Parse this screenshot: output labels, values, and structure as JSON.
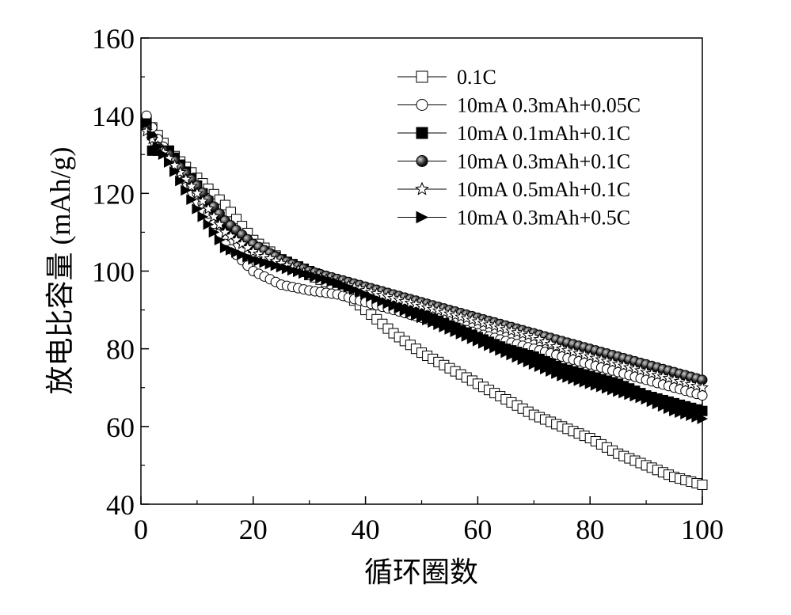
{
  "chart_data": {
    "type": "line",
    "xlabel": "循环圈数",
    "ylabel": "放电比容量 (mAh/g)",
    "xlim": [
      0,
      100
    ],
    "ylim": [
      40,
      160
    ],
    "xticks": [
      "0",
      "20",
      "40",
      "60",
      "80",
      "100"
    ],
    "yticks": [
      "40",
      "60",
      "80",
      "100",
      "120",
      "140",
      "160"
    ],
    "legend_position": "top-right",
    "grid": false,
    "series": [
      {
        "name": "0.1C",
        "marker": "open-square",
        "points": [
          [
            1,
            139
          ],
          [
            5,
            131
          ],
          [
            10,
            124
          ],
          [
            15,
            117
          ],
          [
            20,
            108
          ],
          [
            25,
            103
          ],
          [
            30,
            99
          ],
          [
            35,
            96
          ],
          [
            40,
            90
          ],
          [
            45,
            84
          ],
          [
            50,
            79
          ],
          [
            55,
            75
          ],
          [
            60,
            71
          ],
          [
            65,
            67
          ],
          [
            70,
            63
          ],
          [
            75,
            60
          ],
          [
            80,
            57
          ],
          [
            85,
            53
          ],
          [
            90,
            50
          ],
          [
            95,
            47
          ],
          [
            100,
            45
          ]
        ]
      },
      {
        "name": "10mA 0.3mAh+0.05C",
        "marker": "open-circle",
        "points": [
          [
            1,
            140
          ],
          [
            3,
            134
          ],
          [
            5,
            130
          ],
          [
            10,
            120
          ],
          [
            15,
            107
          ],
          [
            20,
            100
          ],
          [
            25,
            96.5
          ],
          [
            30,
            95
          ],
          [
            35,
            94
          ],
          [
            40,
            92
          ],
          [
            45,
            90
          ],
          [
            50,
            88
          ],
          [
            55,
            86
          ],
          [
            60,
            84
          ],
          [
            65,
            82
          ],
          [
            70,
            80
          ],
          [
            75,
            78
          ],
          [
            80,
            76
          ],
          [
            85,
            74
          ],
          [
            90,
            72
          ],
          [
            95,
            70
          ],
          [
            100,
            68
          ]
        ]
      },
      {
        "name": "10mA 0.1mAh+0.1C",
        "marker": "filled-square",
        "points": [
          [
            1,
            138
          ],
          [
            2,
            131
          ],
          [
            5,
            131
          ],
          [
            10,
            122
          ],
          [
            15,
            112
          ],
          [
            20,
            106
          ],
          [
            25,
            103
          ],
          [
            30,
            100
          ],
          [
            35,
            97
          ],
          [
            40,
            95
          ],
          [
            45,
            92
          ],
          [
            50,
            89
          ],
          [
            55,
            86
          ],
          [
            60,
            83
          ],
          [
            65,
            80
          ],
          [
            70,
            78
          ],
          [
            75,
            75
          ],
          [
            80,
            73
          ],
          [
            85,
            71
          ],
          [
            90,
            68
          ],
          [
            95,
            66
          ],
          [
            100,
            64
          ]
        ]
      },
      {
        "name": "10mA 0.3mAh+0.1C",
        "marker": "half-filled-circle",
        "points": [
          [
            1,
            137
          ],
          [
            3,
            132
          ],
          [
            5,
            130
          ],
          [
            10,
            122
          ],
          [
            15,
            113
          ],
          [
            20,
            107
          ],
          [
            25,
            103
          ],
          [
            30,
            100
          ],
          [
            35,
            98
          ],
          [
            40,
            96
          ],
          [
            45,
            94
          ],
          [
            50,
            92
          ],
          [
            55,
            90
          ],
          [
            60,
            88
          ],
          [
            65,
            86
          ],
          [
            70,
            84
          ],
          [
            75,
            82
          ],
          [
            80,
            80
          ],
          [
            85,
            78
          ],
          [
            90,
            76
          ],
          [
            95,
            74
          ],
          [
            100,
            72
          ]
        ]
      },
      {
        "name": "10mA 0.5mAh+0.1C",
        "marker": "open-star",
        "points": [
          [
            1,
            136
          ],
          [
            3,
            132
          ],
          [
            5,
            129
          ],
          [
            10,
            120
          ],
          [
            15,
            110
          ],
          [
            20,
            105
          ],
          [
            25,
            102
          ],
          [
            30,
            99
          ],
          [
            35,
            97
          ],
          [
            40,
            95
          ],
          [
            45,
            93
          ],
          [
            50,
            91
          ],
          [
            55,
            89
          ],
          [
            60,
            87
          ],
          [
            65,
            85
          ],
          [
            70,
            83
          ],
          [
            75,
            80
          ],
          [
            80,
            78
          ],
          [
            85,
            76
          ],
          [
            90,
            74
          ],
          [
            95,
            72
          ],
          [
            100,
            70
          ]
        ]
      },
      {
        "name": "10mA 0.3mAh+0.5C",
        "marker": "filled-right-triangle",
        "points": [
          [
            1,
            138
          ],
          [
            3,
            132
          ],
          [
            5,
            128
          ],
          [
            10,
            116
          ],
          [
            15,
            106
          ],
          [
            20,
            103
          ],
          [
            25,
            101
          ],
          [
            30,
            99
          ],
          [
            35,
            97
          ],
          [
            40,
            94
          ],
          [
            45,
            91
          ],
          [
            50,
            88
          ],
          [
            55,
            85
          ],
          [
            60,
            82
          ],
          [
            65,
            79
          ],
          [
            70,
            76
          ],
          [
            75,
            73
          ],
          [
            80,
            71
          ],
          [
            85,
            69
          ],
          [
            90,
            67
          ],
          [
            95,
            64
          ],
          [
            100,
            62
          ]
        ]
      }
    ]
  }
}
